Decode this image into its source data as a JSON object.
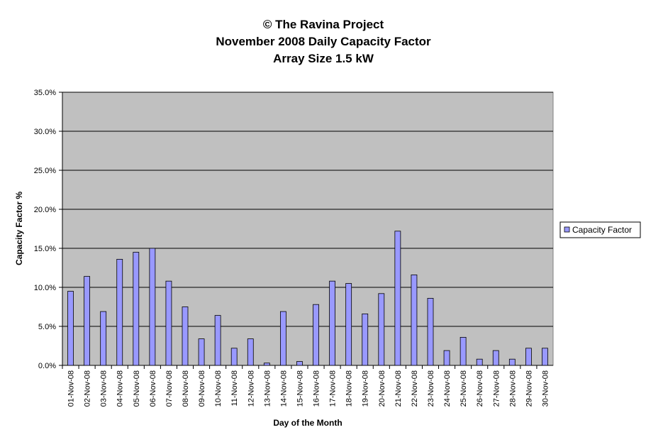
{
  "chart_data": {
    "type": "bar",
    "title": [
      "© The Ravina Project",
      "November 2008 Daily Capacity Factor",
      "Array Size 1.5 kW"
    ],
    "x_label": "Day of the Month",
    "y_label": "Capacity Factor %",
    "categories": [
      "01-Nov-08",
      "02-Nov-08",
      "03-Nov-08",
      "04-Nov-08",
      "05-Nov-08",
      "06-Nov-08",
      "07-Nov-08",
      "08-Nov-08",
      "09-Nov-08",
      "10-Nov-08",
      "11-Nov-08",
      "12-Nov-08",
      "13-Nov-08",
      "14-Nov-08",
      "15-Nov-08",
      "16-Nov-08",
      "17-Nov-08",
      "18-Nov-08",
      "19-Nov-08",
      "20-Nov-08",
      "21-Nov-08",
      "22-Nov-08",
      "23-Nov-08",
      "24-Nov-08",
      "25-Nov-08",
      "26-Nov-08",
      "27-Nov-08",
      "28-Nov-08",
      "29-Nov-08",
      "30-Nov-08"
    ],
    "series": [
      {
        "name": "Capacity Factor",
        "color": "#9999ff",
        "values": [
          9.5,
          11.4,
          6.9,
          13.6,
          14.5,
          15.0,
          10.8,
          7.5,
          3.4,
          6.4,
          2.2,
          3.4,
          0.3,
          6.9,
          0.5,
          7.8,
          10.8,
          10.5,
          6.6,
          9.2,
          17.2,
          11.6,
          8.6,
          1.9,
          3.6,
          0.8,
          1.9,
          0.8,
          2.2,
          2.2
        ]
      }
    ],
    "ylim": [
      0,
      35
    ],
    "yticks": [
      {
        "value": 0,
        "label": "0.0%"
      },
      {
        "value": 5,
        "label": "5.0%"
      },
      {
        "value": 10,
        "label": "10.0%"
      },
      {
        "value": 15,
        "label": "15.0%"
      },
      {
        "value": 20,
        "label": "20.0%"
      },
      {
        "value": 25,
        "label": "25.0%"
      },
      {
        "value": 30,
        "label": "30.0%"
      },
      {
        "value": 35,
        "label": "35.0%"
      }
    ],
    "grid": true,
    "legend": "right"
  }
}
